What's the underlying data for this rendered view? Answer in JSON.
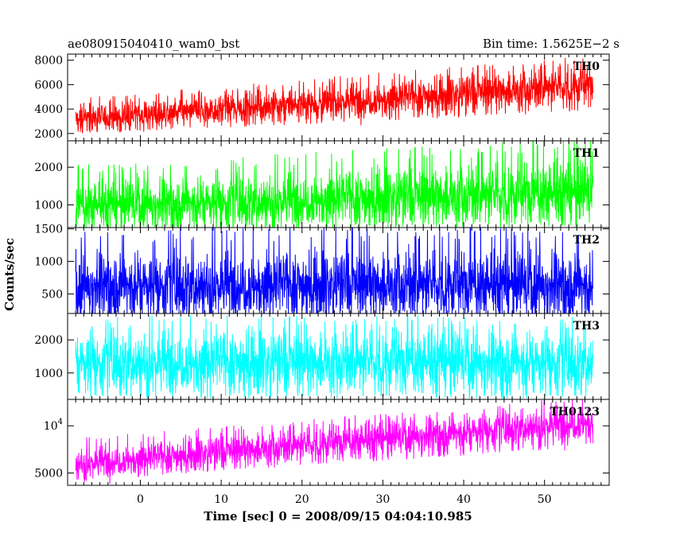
{
  "header": {
    "obs_id": "ae080915040410_wam0_bst",
    "bin_time": "Bin time: 1.5625E−2 s"
  },
  "chart_data": {
    "type": "line",
    "xlabel": "Time [sec] 0 = 2008/09/15 04:04:10.985",
    "ylabel": "Counts/sec",
    "xlim": [
      -9,
      58
    ],
    "x_range": [
      -8,
      56
    ],
    "x_ticks": [
      0,
      10,
      20,
      30,
      40,
      50
    ],
    "x_tick_labels": [
      "0",
      "10",
      "20",
      "30",
      "40",
      "50"
    ],
    "grid": false,
    "panels": [
      {
        "name": "TH0",
        "color": "#ff0000",
        "ylim": [
          1400,
          8500
        ],
        "y_ticks": [
          2000,
          4000,
          6000,
          8000
        ],
        "y_tick_labels": [
          "2000",
          "4000",
          "6000",
          "8000"
        ],
        "mean_start": 3200,
        "mean_end": 6000,
        "low_start": 2200,
        "low_end": 4200,
        "high_start": 4400,
        "high_end": 7600
      },
      {
        "name": "TH1",
        "color": "#00ff00",
        "ylim": [
          400,
          2700
        ],
        "y_ticks": [
          1000,
          2000
        ],
        "y_tick_labels": [
          "1000",
          "2000"
        ],
        "mean_start": 1000,
        "mean_end": 1350,
        "low_start": 500,
        "low_end": 650,
        "high_start": 1750,
        "high_end": 2400
      },
      {
        "name": "TH2",
        "color": "#0000ff",
        "ylim": [
          200,
          1520
        ],
        "y_ticks": [
          500,
          1000,
          1500
        ],
        "y_tick_labels": [
          "500",
          "1000",
          "1500"
        ],
        "mean_start": 650,
        "mean_end": 650,
        "low_start": 280,
        "low_end": 280,
        "high_start": 1300,
        "high_end": 1300
      },
      {
        "name": "TH3",
        "color": "#00ffff",
        "ylim": [
          200,
          2800
        ],
        "y_ticks": [
          1000,
          2000
        ],
        "y_tick_labels": [
          "1000",
          "2000"
        ],
        "mean_start": 1350,
        "mean_end": 1350,
        "low_start": 450,
        "low_end": 450,
        "high_start": 2300,
        "high_end": 2300
      },
      {
        "name": "TH0123",
        "color": "#ff00ff",
        "ylim": [
          3700,
          12800
        ],
        "y_ticks": [
          5000,
          10000
        ],
        "y_tick_labels": [
          "5000",
          "10^4"
        ],
        "mean_start": 6000,
        "mean_end": 10500,
        "low_start": 4600,
        "low_end": 8200,
        "high_start": 7900,
        "high_end": 12200
      }
    ]
  }
}
